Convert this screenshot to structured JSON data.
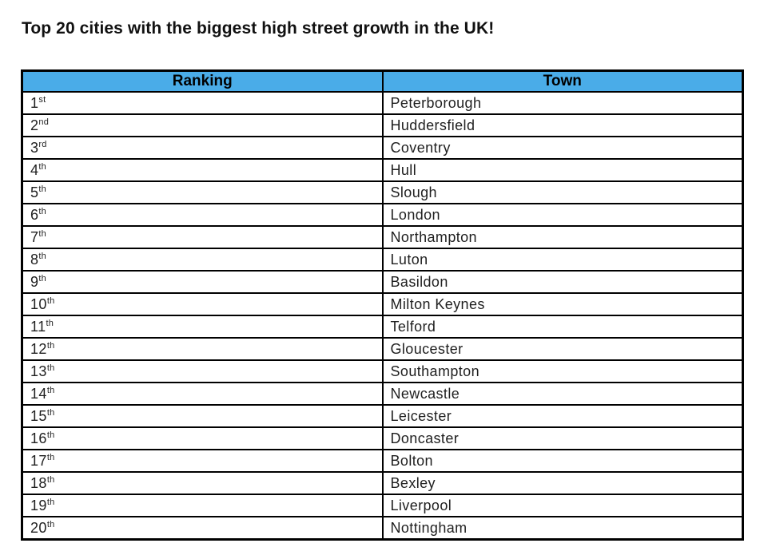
{
  "title": "Top 20 cities with the biggest high street growth in the UK!",
  "colors": {
    "header_bg": "#4AACE8",
    "border": "#000000",
    "text": "#1F1F1F"
  },
  "table": {
    "headers": [
      {
        "label": "Ranking"
      },
      {
        "label": "Town"
      }
    ],
    "rows": [
      {
        "rank": "1",
        "suffix": "st",
        "town": "Peterborough"
      },
      {
        "rank": "2",
        "suffix": "nd",
        "town": "Huddersfield"
      },
      {
        "rank": "3",
        "suffix": "rd",
        "town": "Coventry"
      },
      {
        "rank": "4",
        "suffix": "th",
        "town": "Hull"
      },
      {
        "rank": "5",
        "suffix": "th",
        "town": "Slough"
      },
      {
        "rank": "6",
        "suffix": "th",
        "town": "London"
      },
      {
        "rank": "7",
        "suffix": "th",
        "town": "Northampton"
      },
      {
        "rank": "8",
        "suffix": "th",
        "town": "Luton"
      },
      {
        "rank": "9",
        "suffix": "th",
        "town": "Basildon"
      },
      {
        "rank": "10",
        "suffix": "th",
        "town": "Milton Keynes"
      },
      {
        "rank": "11",
        "suffix": "th",
        "town": "Telford"
      },
      {
        "rank": "12",
        "suffix": "th",
        "town": "Gloucester"
      },
      {
        "rank": "13",
        "suffix": "th",
        "town": "Southampton"
      },
      {
        "rank": "14",
        "suffix": "th",
        "town": "Newcastle"
      },
      {
        "rank": "15",
        "suffix": "th",
        "town": "Leicester"
      },
      {
        "rank": "16",
        "suffix": "th",
        "town": "Doncaster"
      },
      {
        "rank": "17",
        "suffix": "th",
        "town": "Bolton"
      },
      {
        "rank": "18",
        "suffix": "th",
        "town": "Bexley"
      },
      {
        "rank": "19",
        "suffix": "th",
        "town": "Liverpool"
      },
      {
        "rank": "20",
        "suffix": "th",
        "town": "Nottingham"
      }
    ]
  }
}
